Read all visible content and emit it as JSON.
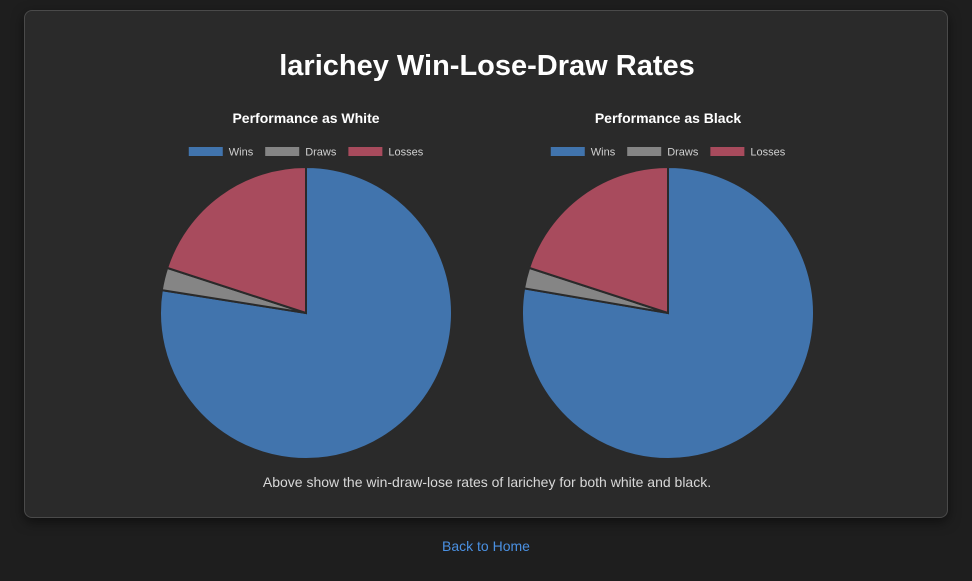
{
  "page": {
    "title": "larichey Win-Lose-Draw Rates",
    "caption": "Above show the win-draw-lose rates of larichey for both white and black.",
    "back_link": "Back to Home"
  },
  "colors": {
    "wins": "#4174ad",
    "draws": "#858585",
    "losses": "#a84b5d",
    "slice_border": "#2a2a2a",
    "link": "#4a90e2"
  },
  "chart_data": [
    {
      "type": "pie",
      "title": "Performance as White",
      "legend_position": "top",
      "labels": [
        "Wins",
        "Draws",
        "Losses"
      ],
      "values": [
        77.5,
        2.5,
        20.0
      ],
      "unit": "%"
    },
    {
      "type": "pie",
      "title": "Performance as Black",
      "legend_position": "top",
      "labels": [
        "Wins",
        "Draws",
        "Losses"
      ],
      "values": [
        77.7,
        2.3,
        20.0
      ],
      "unit": "%"
    }
  ]
}
